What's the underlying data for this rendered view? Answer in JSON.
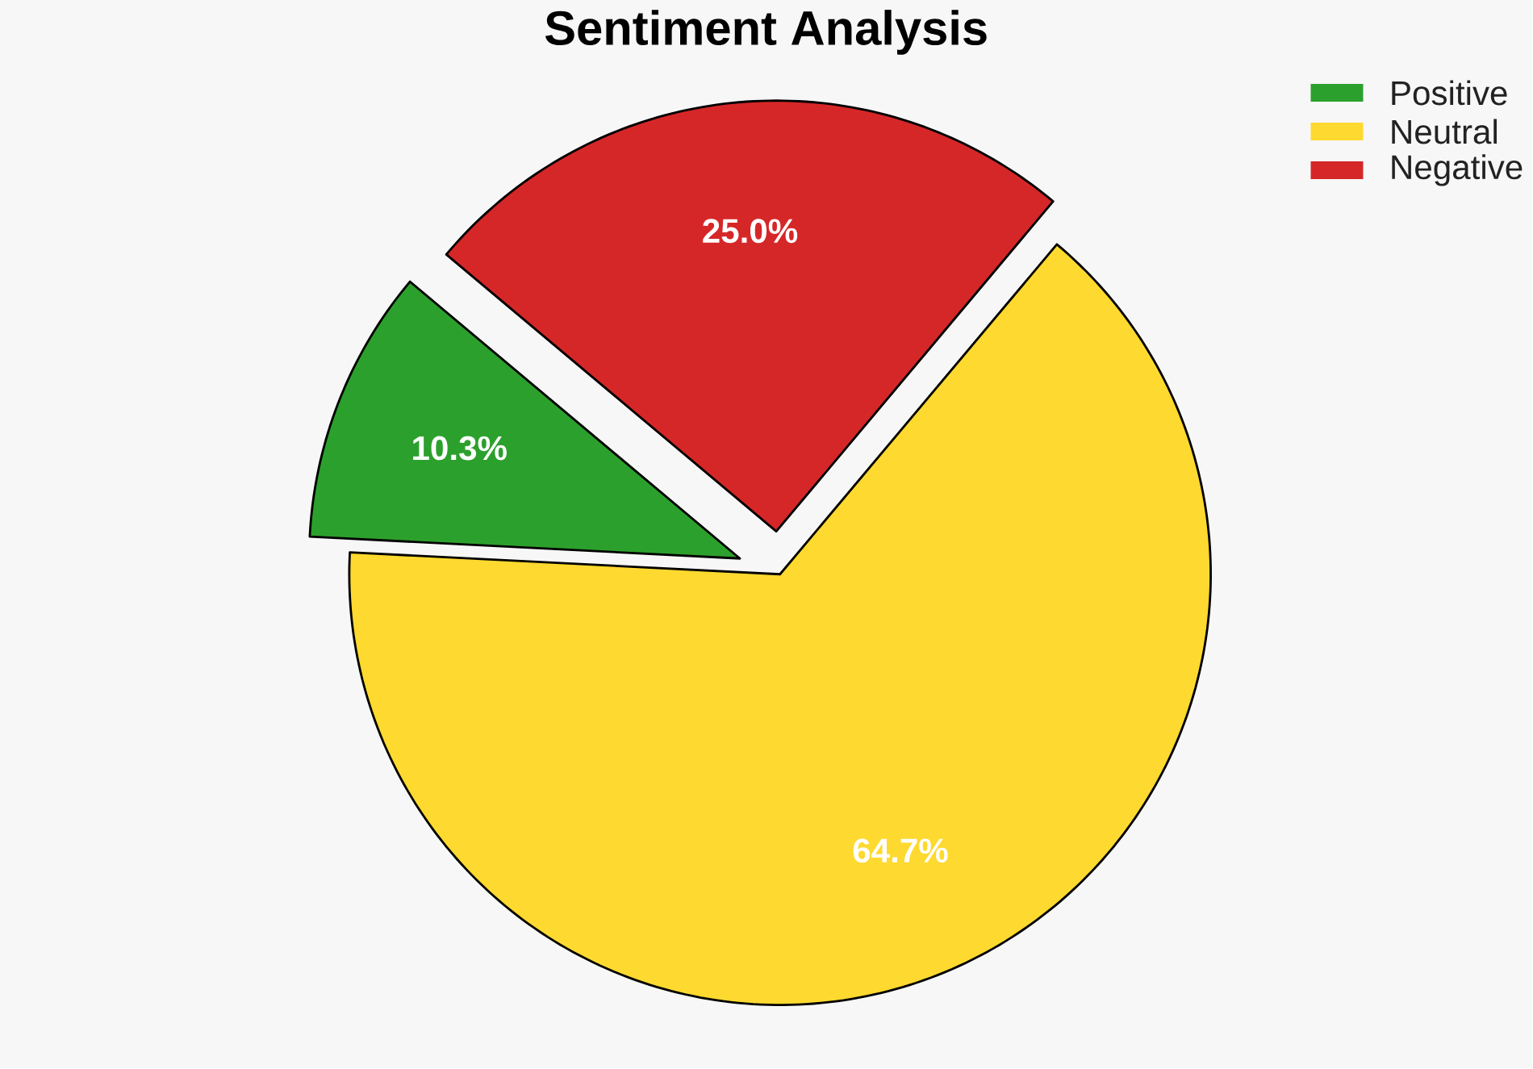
{
  "chart_data": {
    "type": "pie",
    "title": "Sentiment Analysis",
    "categories": [
      "Positive",
      "Neutral",
      "Negative"
    ],
    "values": [
      10.3,
      64.7,
      25.0
    ],
    "colors": [
      "#2ca02c",
      "#fed92f",
      "#d62728"
    ],
    "value_labels": [
      "10.3%",
      "64.7%",
      "25.0%"
    ],
    "legend": "top right"
  }
}
